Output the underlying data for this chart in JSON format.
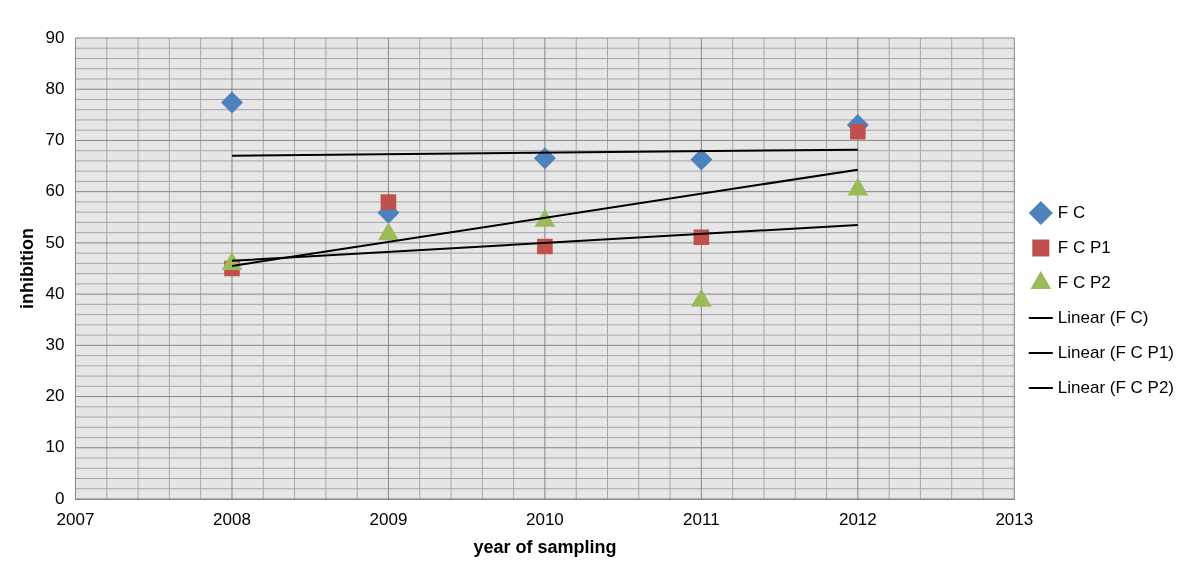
{
  "chart_data": {
    "type": "scatter",
    "xlabel": "year of sampling",
    "ylabel": "inhibition",
    "xlim": [
      2007,
      2013
    ],
    "xticks": [
      2007,
      2008,
      2009,
      2010,
      2011,
      2012,
      2013
    ],
    "ylim": [
      0,
      90
    ],
    "yticks": [
      0,
      10,
      20,
      30,
      40,
      50,
      60,
      70,
      80,
      90
    ],
    "grid": true,
    "legend": "right",
    "series": [
      {
        "name": "F C",
        "marker": "diamond",
        "color": "#4f81bd",
        "x": [
          2008,
          2009,
          2010,
          2011,
          2012
        ],
        "values": [
          77.4,
          55.9,
          66.5,
          66.3,
          73
        ]
      },
      {
        "name": "F C P1",
        "marker": "square",
        "color": "#c0504d",
        "x": [
          2008,
          2009,
          2010,
          2011,
          2012
        ],
        "values": [
          45,
          58,
          49.3,
          51.1,
          71.7
        ]
      },
      {
        "name": "F C P2",
        "marker": "triangle",
        "color": "#9bbb59",
        "x": [
          2008,
          2009,
          2010,
          2011,
          2012
        ],
        "values": [
          45.9,
          51.7,
          54.3,
          38.7,
          60.4
        ]
      },
      {
        "name": "Linear (F C)",
        "type": "line",
        "marker": "none",
        "line_style": "solid",
        "color": "#000000",
        "x": [
          2008,
          2012
        ],
        "values": [
          67,
          68.2
        ]
      },
      {
        "name": "Linear (F C P1)",
        "type": "line",
        "marker": "none",
        "line_style": "solid",
        "color": "#000000",
        "x": [
          2008,
          2012
        ],
        "values": [
          45.5,
          64.3
        ]
      },
      {
        "name": "Linear (F C P2)",
        "type": "line",
        "marker": "none",
        "line_style": "solid",
        "color": "#000000",
        "x": [
          2008,
          2012
        ],
        "values": [
          46.5,
          53.5
        ]
      }
    ]
  }
}
